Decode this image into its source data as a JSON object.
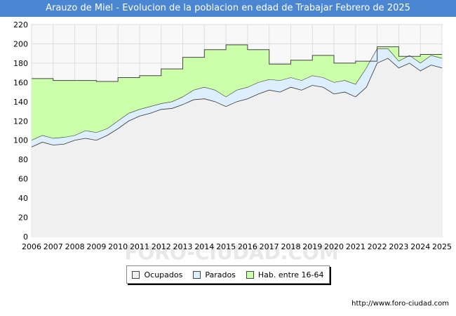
{
  "chart_data": {
    "type": "area",
    "title": "Arauzo de Miel - Evolucion de la poblacion en edad de Trabajar Febrero de 2025",
    "xlabel": "",
    "ylabel": "",
    "ylim": [
      0,
      220
    ],
    "y_ticks": [
      0,
      20,
      40,
      60,
      80,
      100,
      120,
      140,
      160,
      180,
      200,
      220
    ],
    "x_ticks": [
      "2006",
      "2007",
      "2008",
      "2009",
      "2010",
      "2011",
      "2012",
      "2013",
      "2014",
      "2015",
      "2016",
      "2017",
      "2018",
      "2019",
      "2020",
      "2021",
      "2022",
      "2023",
      "2024",
      "2025"
    ],
    "grid": true,
    "legend_position": "bottom",
    "series": [
      {
        "name": "Ocupados",
        "color": "#f0f0f0",
        "line_color": "#333333",
        "x": [
          2006.0,
          2006.5,
          2007.0,
          2007.5,
          2008.0,
          2008.5,
          2009.0,
          2009.5,
          2010.0,
          2010.5,
          2011.0,
          2011.5,
          2012.0,
          2012.5,
          2013.0,
          2013.5,
          2014.0,
          2014.5,
          2015.0,
          2015.5,
          2016.0,
          2016.5,
          2017.0,
          2017.5,
          2018.0,
          2018.5,
          2019.0,
          2019.5,
          2020.0,
          2020.5,
          2021.0,
          2021.5,
          2022.0,
          2022.5,
          2023.0,
          2023.5,
          2024.0,
          2024.5,
          2025.0
        ],
        "values": [
          93,
          98,
          95,
          96,
          100,
          102,
          100,
          105,
          112,
          120,
          125,
          128,
          132,
          133,
          137,
          142,
          143,
          140,
          135,
          140,
          143,
          148,
          152,
          150,
          155,
          152,
          157,
          155,
          148,
          150,
          145,
          155,
          180,
          185,
          175,
          180,
          172,
          178,
          175
        ]
      },
      {
        "name": "Parados",
        "color": "#ddeeff",
        "line_color": "#333333",
        "x": [
          2006.0,
          2006.5,
          2007.0,
          2007.5,
          2008.0,
          2008.5,
          2009.0,
          2009.5,
          2010.0,
          2010.5,
          2011.0,
          2011.5,
          2012.0,
          2012.5,
          2013.0,
          2013.5,
          2014.0,
          2014.5,
          2015.0,
          2015.5,
          2016.0,
          2016.5,
          2017.0,
          2017.5,
          2018.0,
          2018.5,
          2019.0,
          2019.5,
          2020.0,
          2020.5,
          2021.0,
          2021.5,
          2022.0,
          2022.5,
          2023.0,
          2023.5,
          2024.0,
          2024.5,
          2025.0
        ],
        "values": [
          100,
          105,
          102,
          103,
          105,
          110,
          108,
          112,
          120,
          128,
          132,
          135,
          138,
          140,
          145,
          152,
          155,
          152,
          145,
          152,
          155,
          160,
          163,
          162,
          165,
          162,
          167,
          165,
          160,
          162,
          158,
          175,
          195,
          195,
          182,
          188,
          180,
          188,
          185
        ]
      },
      {
        "name": "Hab. entre 16-64",
        "color": "#ccffaa",
        "line_color": "#444444",
        "x": [
          2006.0,
          2007.0,
          2008.0,
          2009.0,
          2010.0,
          2011.0,
          2012.0,
          2013.0,
          2014.0,
          2015.0,
          2016.0,
          2017.0,
          2018.0,
          2019.0,
          2020.0,
          2021.0,
          2022.0,
          2023.0,
          2024.0,
          2025.0
        ],
        "values": [
          164,
          162,
          162,
          161,
          165,
          167,
          174,
          186,
          194,
          199,
          194,
          179,
          183,
          188,
          180,
          182,
          197,
          187,
          189,
          189
        ]
      }
    ]
  },
  "legend": {
    "ocupados": "Ocupados",
    "parados": "Parados",
    "habitantes": "Hab. entre 16-64"
  },
  "watermark": "FORO-CIUDAD.COM",
  "source_url": "http://www.foro-ciudad.com"
}
